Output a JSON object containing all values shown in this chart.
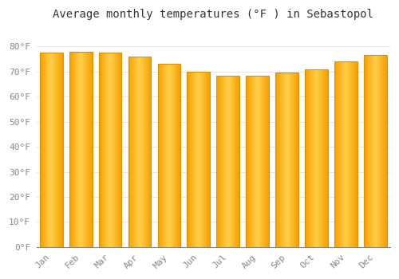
{
  "title": "Average monthly temperatures (°F ) in Sebastopol",
  "months": [
    "Jan",
    "Feb",
    "Mar",
    "Apr",
    "May",
    "Jun",
    "Jul",
    "Aug",
    "Sep",
    "Oct",
    "Nov",
    "Dec"
  ],
  "values": [
    77.5,
    78.0,
    77.5,
    76.0,
    73.0,
    70.0,
    68.5,
    68.5,
    69.5,
    71.0,
    74.0,
    76.5
  ],
  "bar_color_left": "#F5A000",
  "bar_color_center": "#FFD04A",
  "bar_color_right": "#F5A000",
  "bar_edge_color": "#E09000",
  "background_color": "#FFFFFF",
  "plot_bg_color": "#FFFFFF",
  "grid_color": "#E0E0E0",
  "ylim": [
    0,
    88
  ],
  "ytick_values": [
    0,
    10,
    20,
    30,
    40,
    50,
    60,
    70,
    80
  ],
  "title_fontsize": 10,
  "tick_fontsize": 8,
  "tick_color": "#888888",
  "title_color": "#333333",
  "bar_width": 0.78
}
